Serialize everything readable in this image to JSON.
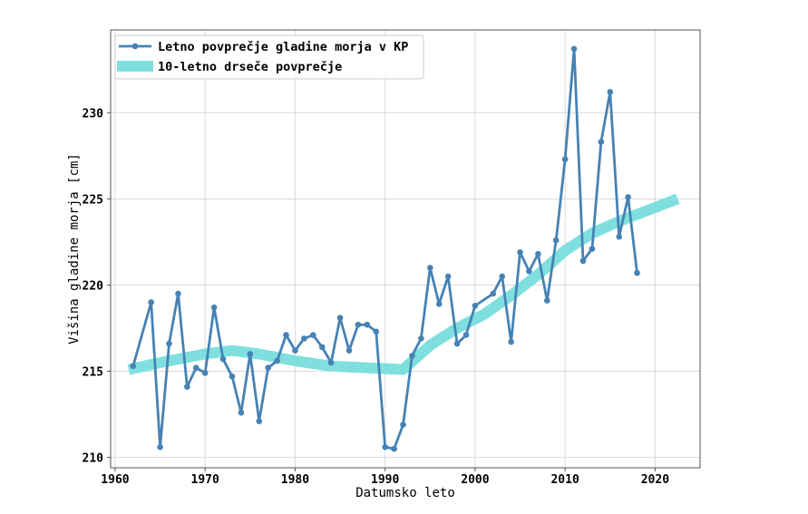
{
  "chart_data": {
    "type": "line",
    "title": "",
    "xlabel": "Datumsko leto",
    "ylabel": "Višina gladine morja [cm]",
    "xlim": [
      1959.5,
      2025
    ],
    "ylim": [
      209.4,
      234.8
    ],
    "xticks": [
      1960,
      1970,
      1980,
      1990,
      2000,
      2010,
      2020
    ],
    "yticks": [
      210,
      215,
      220,
      225,
      230
    ],
    "grid": true,
    "legend_position": "top-left",
    "series": [
      {
        "name": "Letno povprečje gladine morja v KP",
        "kind": "line-markers",
        "color": "#4682b4",
        "x": [
          1962,
          1964,
          1965,
          1966,
          1967,
          1968,
          1969,
          1970,
          1971,
          1972,
          1973,
          1974,
          1975,
          1976,
          1977,
          1978,
          1979,
          1980,
          1981,
          1982,
          1983,
          1984,
          1985,
          1986,
          1987,
          1988,
          1989,
          1990,
          1991,
          1992,
          1993,
          1994,
          1995,
          1996,
          1997,
          1998,
          1999,
          2000,
          2002,
          2003,
          2004,
          2005,
          2006,
          2007,
          2008,
          2009,
          2010,
          2011,
          2012,
          2013,
          2014,
          2015,
          2016,
          2017,
          2018
        ],
        "y": [
          215.3,
          219.0,
          210.6,
          216.6,
          219.5,
          214.1,
          215.2,
          214.9,
          218.7,
          215.7,
          214.7,
          212.6,
          216.0,
          212.1,
          215.2,
          215.6,
          217.1,
          216.2,
          216.9,
          217.1,
          216.4,
          215.5,
          218.1,
          216.2,
          217.7,
          217.7,
          217.3,
          210.6,
          210.5,
          211.9,
          215.9,
          216.9,
          221.0,
          218.9,
          220.5,
          216.6,
          217.1,
          218.8,
          219.5,
          220.5,
          216.7,
          221.9,
          220.8,
          221.8,
          219.1,
          222.6,
          227.3,
          233.7,
          221.4,
          222.1,
          228.3,
          231.2,
          222.8,
          225.1,
          220.7
        ]
      },
      {
        "name": "10-letno drseče povprečje",
        "kind": "thick-line",
        "color": "#7fdfdf",
        "x": [
          1961.5,
          1965,
          1968,
          1970,
          1973,
          1976,
          1980,
          1984,
          1988,
          1992,
          1995,
          1998,
          2001,
          2004,
          2007,
          2010,
          2013,
          2016,
          2019,
          2022.5
        ],
        "y": [
          215.1,
          215.5,
          215.8,
          216.0,
          216.2,
          216.0,
          215.6,
          215.3,
          215.2,
          215.1,
          216.5,
          217.5,
          218.3,
          219.4,
          220.6,
          222.0,
          223.0,
          223.7,
          224.3,
          225.0
        ]
      }
    ]
  }
}
